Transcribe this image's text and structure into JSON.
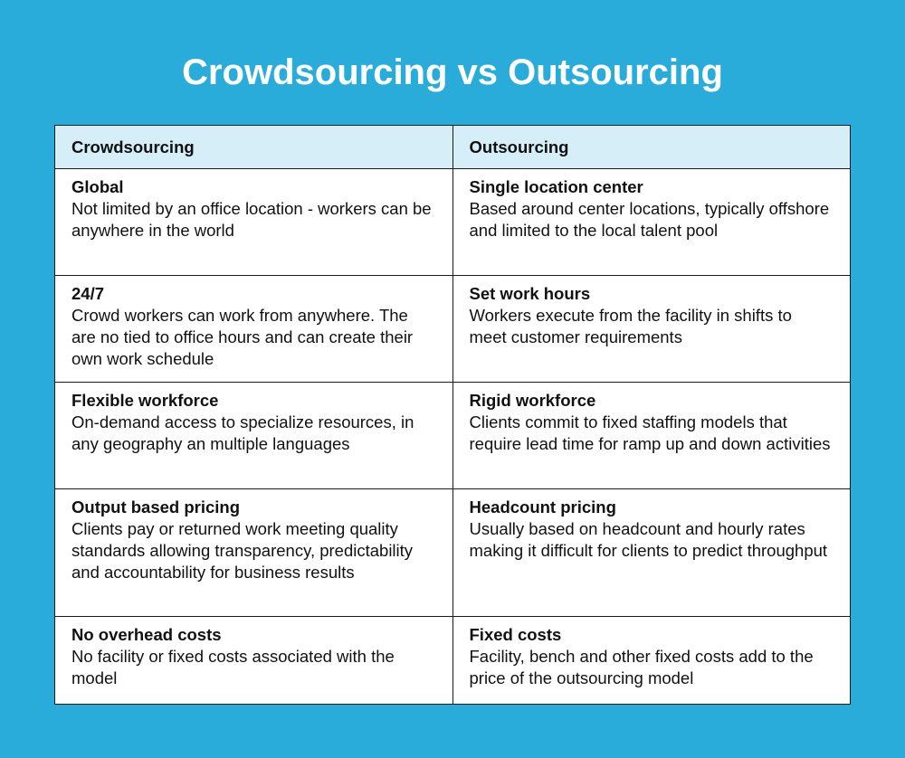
{
  "title": "Crowdsourcing vs Outsourcing",
  "columns": [
    "Crowdsourcing",
    "Outsourcing"
  ],
  "rows": [
    {
      "crowd": {
        "heading": "Global",
        "text": "Not limited by an office location - workers can be anywhere in the world"
      },
      "out": {
        "heading": "Single location center",
        "text": "Based around center locations, typically offshore and limited to the local talent pool"
      }
    },
    {
      "crowd": {
        "heading": "24/7",
        "text": "Crowd workers can work from anywhere. The are no tied to office hours and can create their own work schedule"
      },
      "out": {
        "heading": "Set work hours",
        "text": "Workers execute from the facility in shifts to meet customer requirements"
      }
    },
    {
      "crowd": {
        "heading": "Flexible workforce",
        "text": "On-demand access to specialize resources, in any geography an multiple languages"
      },
      "out": {
        "heading": "Rigid workforce",
        "text": "Clients commit to fixed staffing models that require lead time for ramp up and down activities"
      }
    },
    {
      "crowd": {
        "heading": "Output based pricing",
        "text": "Clients pay or returned work meeting quality standards allowing transparency, predictability and accountability for business results"
      },
      "out": {
        "heading": "Headcount pricing",
        "text": "Usually based on headcount and hourly rates making it difficult for clients to predict throughput"
      }
    },
    {
      "crowd": {
        "heading": "No overhead costs",
        "text": "No facility or fixed costs associated with the model"
      },
      "out": {
        "heading": "Fixed costs",
        "text": "Facility, bench and other fixed costs add to the price of the outsourcing model"
      }
    }
  ],
  "colors": {
    "background": "#29acd9",
    "header": "#d5eef8",
    "border": "#1a1a1a"
  }
}
